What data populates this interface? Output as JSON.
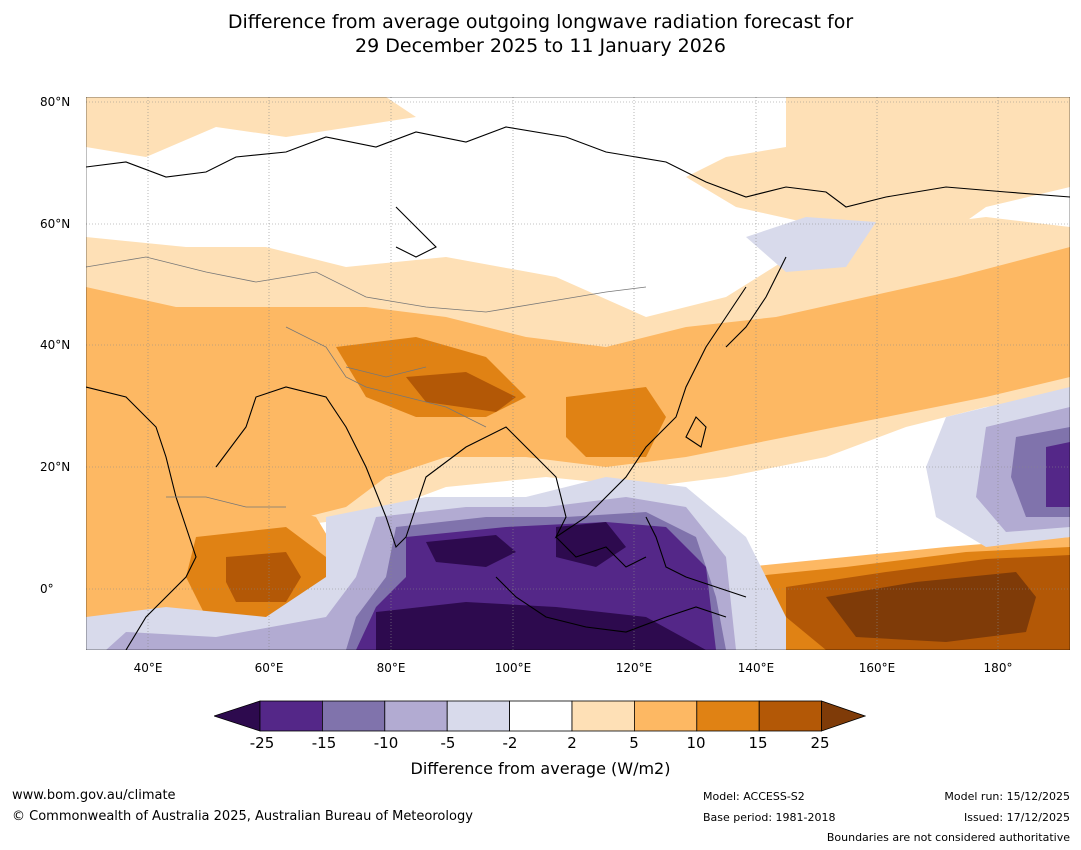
{
  "title_line1": "Difference from average outgoing longwave radiation forecast for",
  "title_line2": "29 December 2025 to 11 January 2026",
  "latitude_labels": [
    "80°N",
    "60°N",
    "40°N",
    "20°N",
    "0°"
  ],
  "longitude_labels": [
    "40°E",
    "60°E",
    "80°E",
    "100°E",
    "120°E",
    "140°E",
    "160°E",
    "180°"
  ],
  "colorbar": {
    "ticks": [
      "-25",
      "-15",
      "-10",
      "-5",
      "-2",
      "2",
      "5",
      "10",
      "15",
      "25"
    ],
    "colors": [
      "#2d0a4e",
      "#542788",
      "#8073ac",
      "#b2abd2",
      "#d8daeb",
      "#ffffff",
      "#fee0b6",
      "#fdb863",
      "#e08214",
      "#b35806",
      "#7f3b08"
    ],
    "title": "Difference from average (W/m2)"
  },
  "footer": {
    "url": "www.bom.gov.au/climate",
    "copyright": "© Commonwealth of Australia 2025, Australian Bureau of Meteorology",
    "model": "Model: ACCESS-S2",
    "base_period": "Base period: 1981-2018",
    "model_run": "Model run: 15/12/2025",
    "issued": "Issued: 17/12/2025",
    "boundaries": "Boundaries are not considered authoritative"
  }
}
